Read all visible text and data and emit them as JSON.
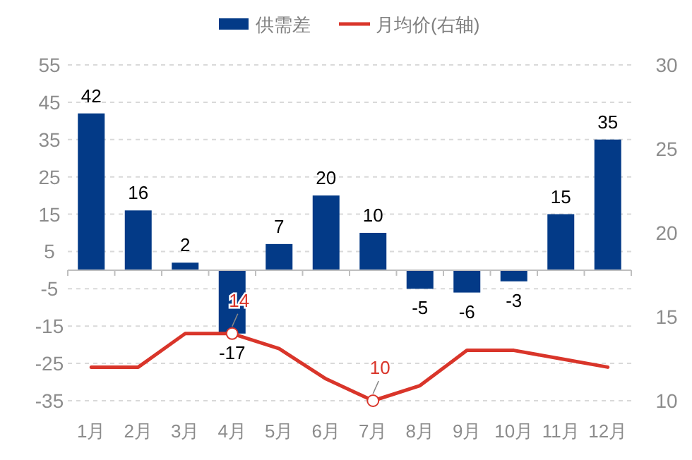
{
  "chart_data": {
    "type": "bar",
    "categories": [
      "1月",
      "2月",
      "3月",
      "4月",
      "5月",
      "6月",
      "7月",
      "8月",
      "9月",
      "10月",
      "11月",
      "12月"
    ],
    "series": [
      {
        "name": "供需差",
        "color": "#033a87",
        "values": [
          42,
          16,
          2,
          -17,
          7,
          20,
          10,
          -5,
          -6,
          -3,
          15,
          35
        ]
      },
      {
        "name": "月均价(右轴)",
        "type": "line",
        "axis": "y2",
        "color": "#d9352a",
        "values": [
          12.0,
          12.0,
          14.0,
          14,
          13.1,
          11.3,
          10,
          10.9,
          13.0,
          13.0,
          12.5,
          12.0
        ],
        "value_labels": [
          null,
          null,
          null,
          "14",
          null,
          null,
          "10",
          null,
          null,
          null,
          null,
          null
        ]
      }
    ],
    "ylim": [
      -35,
      55
    ],
    "yticks": [
      -35,
      -25,
      -15,
      -5,
      5,
      15,
      25,
      35,
      45,
      55
    ],
    "y2lim": [
      10,
      30
    ],
    "y2ticks": [
      10,
      15,
      20,
      25,
      30
    ],
    "grid": "y",
    "legend": "top",
    "data_labels": true
  }
}
